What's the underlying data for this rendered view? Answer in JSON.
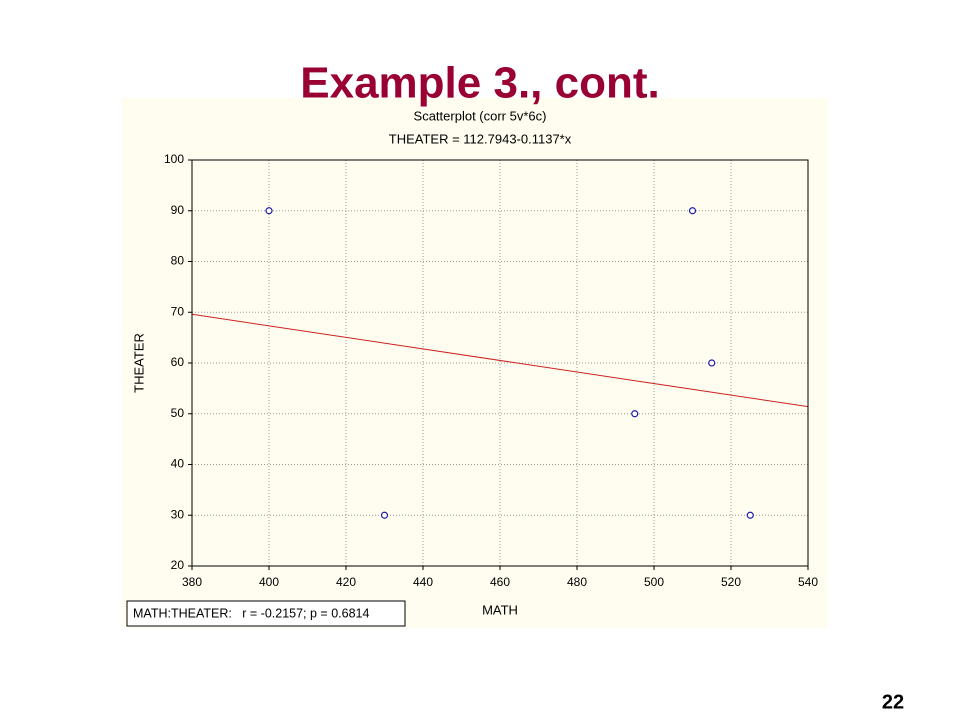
{
  "slide_title": "Example 3., cont.",
  "page_number": "22",
  "chart_data": {
    "type": "scatter",
    "title": "Scatterplot (corr 5v*6c)",
    "subtitle": "THEATER = 112.7943-0.1137*x",
    "x_label": "MATH",
    "y_label": "THEATER",
    "annotation": "MATH:THEATER:   r = -0.2157; p = 0.6814",
    "series": [
      {
        "name": "THEATER",
        "color": "#1a1aa8",
        "x": [
          400,
          430,
          495,
          510,
          515,
          525
        ],
        "values": [
          90,
          30,
          50,
          90,
          60,
          30
        ]
      }
    ],
    "fit_line": {
      "color": "#cc2222",
      "x": [
        380,
        540
      ],
      "values": [
        69.6,
        51.4
      ]
    },
    "xlim": [
      380,
      540
    ],
    "xticks": [
      380,
      400,
      420,
      440,
      460,
      480,
      500,
      520,
      540
    ],
    "ylim": [
      20,
      100
    ],
    "yticks": [
      20,
      30,
      40,
      50,
      60,
      70,
      80,
      90,
      100
    ],
    "grid": true
  }
}
